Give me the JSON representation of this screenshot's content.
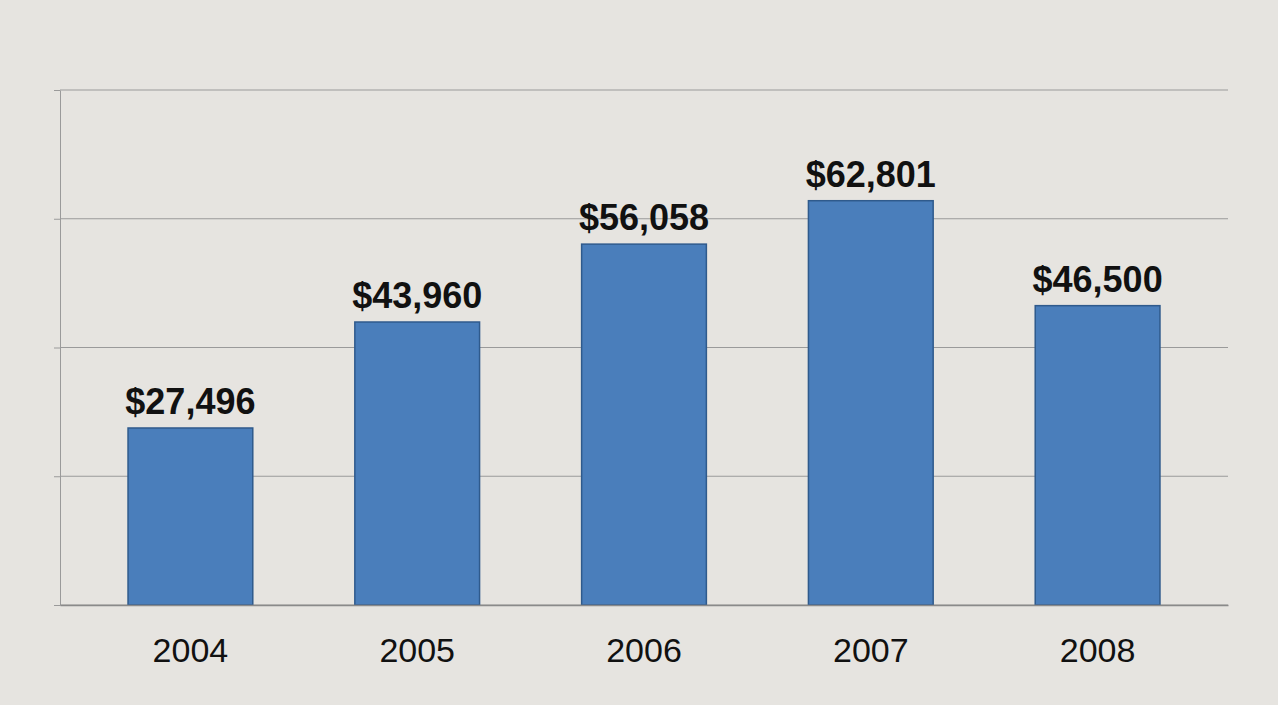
{
  "chart_data": {
    "type": "bar",
    "categories": [
      "2004",
      "2005",
      "2006",
      "2007",
      "2008"
    ],
    "values": [
      27496,
      43960,
      56058,
      62801,
      46500
    ],
    "value_labels": [
      "$27,496",
      "$43,960",
      "$56,058",
      "$62,801",
      "$46,500"
    ],
    "color": "#4a7ebb",
    "ylim": [
      0,
      80000
    ],
    "yticks": [
      0,
      20000,
      40000,
      60000,
      80000
    ],
    "grid": true,
    "data_labels": true,
    "tick_labels": "x"
  }
}
